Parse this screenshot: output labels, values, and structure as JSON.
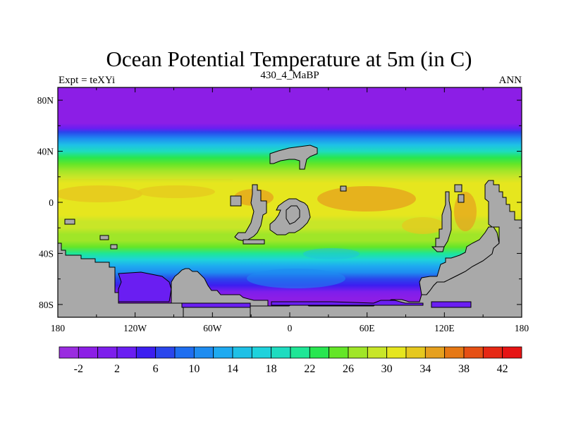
{
  "chart_data": {
    "type": "heatmap",
    "title": "Ocean Potential Temperature at 5m (in C)",
    "subtitle_left": "Expt = teXYi",
    "subtitle_center": "430_4_MaBP",
    "subtitle_right": "ANN",
    "x_ticks": [
      "180",
      "120W",
      "60W",
      "0",
      "60E",
      "120E",
      "180"
    ],
    "x_tick_values": [
      -180,
      -120,
      -60,
      0,
      60,
      120,
      180
    ],
    "y_ticks": [
      "80N",
      "40N",
      "0",
      "40S",
      "80S"
    ],
    "y_tick_values": [
      80,
      40,
      0,
      -40,
      -80
    ],
    "xlim": [
      -180,
      180
    ],
    "ylim": [
      -90,
      90
    ],
    "land_color": "#a9a9a9",
    "colorbar": {
      "levels": [
        -4,
        -2,
        0,
        2,
        4,
        6,
        8,
        10,
        12,
        14,
        16,
        18,
        20,
        22,
        24,
        26,
        28,
        30,
        32,
        34,
        36,
        38,
        40,
        42,
        44
      ],
      "tick_labels": [
        "-2",
        "2",
        "6",
        "10",
        "14",
        "18",
        "22",
        "26",
        "30",
        "34",
        "38",
        "42"
      ],
      "tick_values": [
        -2,
        2,
        6,
        10,
        14,
        18,
        22,
        26,
        30,
        34,
        38,
        42
      ],
      "colors": [
        "#9a2ce0",
        "#8c1ee6",
        "#7d1eec",
        "#6a1ef2",
        "#3c1ef0",
        "#2a46ec",
        "#1e6ef0",
        "#1e8cf0",
        "#1eaaf0",
        "#1ec0e6",
        "#1ed2dc",
        "#1edcc0",
        "#1ee696",
        "#28e650",
        "#64e628",
        "#a0e628",
        "#c8e628",
        "#e6e61e",
        "#e6c81e",
        "#e6a01e",
        "#e67814",
        "#e65014",
        "#e62814",
        "#e61414"
      ]
    },
    "zonal_mean_temperature": {
      "lat": [
        90,
        70,
        62,
        58,
        55,
        50,
        45,
        40,
        35,
        30,
        25,
        20,
        15,
        10,
        5,
        0,
        -5,
        -10,
        -15,
        -20,
        -25,
        -30,
        -35,
        -40,
        -45,
        -50,
        -55,
        -60,
        -65,
        -70,
        -75,
        -80,
        -90
      ],
      "temp": [
        -2,
        -2,
        -1.5,
        3,
        6,
        10,
        14,
        18,
        22,
        25,
        27,
        28.5,
        30,
        31,
        31.5,
        31,
        30.5,
        30,
        29.5,
        29,
        27.5,
        26,
        24,
        21,
        17,
        13,
        10,
        7,
        4,
        1,
        -1,
        -2,
        -2
      ]
    }
  }
}
